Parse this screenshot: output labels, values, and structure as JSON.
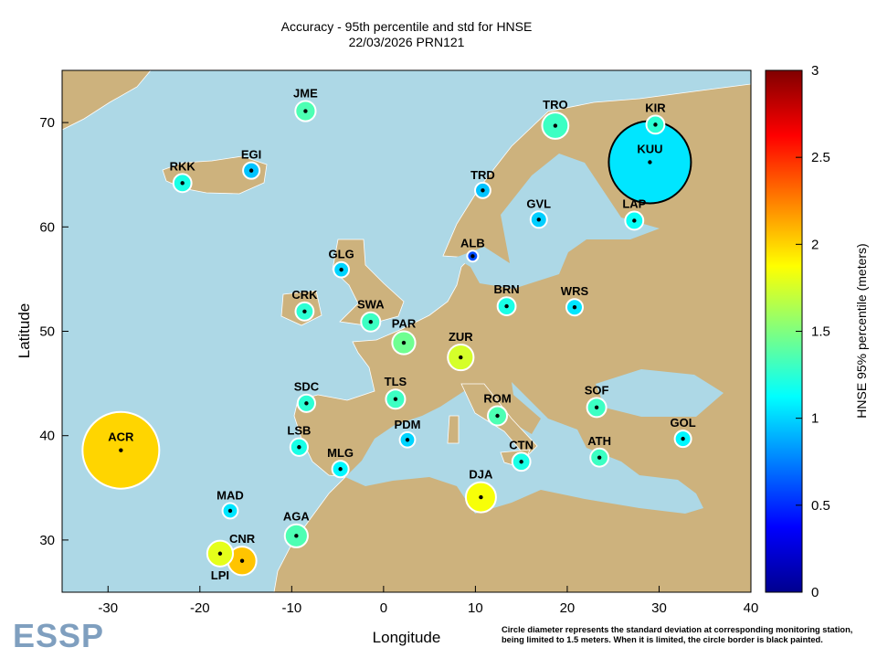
{
  "chart_data": {
    "type": "scatter",
    "title": "Accuracy - 95th percentile and std for HNSE",
    "subtitle": "22/03/2026 PRN121",
    "xlabel": "Longitude",
    "ylabel": "Latitude",
    "xlim": [
      -35,
      40
    ],
    "ylim": [
      25,
      75
    ],
    "xticks": [
      -30,
      -20,
      -10,
      0,
      10,
      20,
      30,
      40
    ],
    "yticks": [
      30,
      40,
      50,
      60,
      70
    ],
    "colorbar": {
      "label": "HNSE 95% percentile (meters)",
      "range": [
        0,
        3
      ],
      "ticks": [
        "0",
        "0.5",
        "1",
        "1.5",
        "2",
        "2.5",
        "3"
      ],
      "colormap": "jet"
    },
    "size_encoding": "circle diameter = std (meters), limited to 1.5",
    "colors": {
      "land": "#cdb27d",
      "sea": "#add8e6",
      "limited_border": "#000000",
      "normal_border": "#ffffff"
    },
    "stations": [
      {
        "name": "JME",
        "lon": -8.5,
        "lat": 71.1,
        "hnse95": 1.35,
        "std": 0.37,
        "limited": false
      },
      {
        "name": "TRO",
        "lon": 18.7,
        "lat": 69.7,
        "hnse95": 1.3,
        "std": 0.48,
        "limited": false
      },
      {
        "name": "KIR",
        "lon": 29.6,
        "lat": 69.8,
        "hnse95": 1.25,
        "std": 0.33,
        "limited": false
      },
      {
        "name": "KUU",
        "lon": 29.0,
        "lat": 66.2,
        "hnse95": 1.05,
        "std": 1.5,
        "limited": true
      },
      {
        "name": "RKK",
        "lon": -21.9,
        "lat": 64.2,
        "hnse95": 1.2,
        "std": 0.33,
        "limited": false
      },
      {
        "name": "EGI",
        "lon": -14.4,
        "lat": 65.4,
        "hnse95": 0.95,
        "std": 0.3,
        "limited": false
      },
      {
        "name": "TRD",
        "lon": 10.8,
        "lat": 63.5,
        "hnse95": 0.95,
        "std": 0.28,
        "limited": false
      },
      {
        "name": "GVL",
        "lon": 16.9,
        "lat": 60.7,
        "hnse95": 0.98,
        "std": 0.3,
        "limited": false
      },
      {
        "name": "LAP",
        "lon": 27.3,
        "lat": 60.6,
        "hnse95": 1.15,
        "std": 0.33,
        "limited": false
      },
      {
        "name": "ALB",
        "lon": 9.7,
        "lat": 57.2,
        "hnse95": 0.6,
        "std": 0.2,
        "limited": false
      },
      {
        "name": "GLG",
        "lon": -4.6,
        "lat": 55.9,
        "hnse95": 1.0,
        "std": 0.28,
        "limited": false
      },
      {
        "name": "CRK",
        "lon": -8.6,
        "lat": 51.9,
        "hnse95": 1.25,
        "std": 0.33,
        "limited": false
      },
      {
        "name": "SWA",
        "lon": -1.4,
        "lat": 50.9,
        "hnse95": 1.3,
        "std": 0.35,
        "limited": false
      },
      {
        "name": "BRN",
        "lon": 13.4,
        "lat": 52.4,
        "hnse95": 1.2,
        "std": 0.33,
        "limited": false
      },
      {
        "name": "WRS",
        "lon": 20.8,
        "lat": 52.3,
        "hnse95": 1.05,
        "std": 0.3,
        "limited": false
      },
      {
        "name": "PAR",
        "lon": 2.2,
        "lat": 48.9,
        "hnse95": 1.45,
        "std": 0.42,
        "limited": false
      },
      {
        "name": "ZUR",
        "lon": 8.4,
        "lat": 47.5,
        "hnse95": 1.75,
        "std": 0.47,
        "limited": false
      },
      {
        "name": "TLS",
        "lon": 1.3,
        "lat": 43.5,
        "hnse95": 1.3,
        "std": 0.35,
        "limited": false
      },
      {
        "name": "SDC",
        "lon": -8.4,
        "lat": 43.1,
        "hnse95": 1.25,
        "std": 0.32,
        "limited": false
      },
      {
        "name": "ROM",
        "lon": 12.4,
        "lat": 41.9,
        "hnse95": 1.35,
        "std": 0.35,
        "limited": false
      },
      {
        "name": "SOF",
        "lon": 23.2,
        "lat": 42.7,
        "hnse95": 1.3,
        "std": 0.35,
        "limited": false
      },
      {
        "name": "GOL",
        "lon": 32.6,
        "lat": 39.7,
        "hnse95": 1.1,
        "std": 0.3,
        "limited": false
      },
      {
        "name": "ACR",
        "lon": -28.6,
        "lat": 38.6,
        "hnse95": 2.0,
        "std": 1.4,
        "limited": false
      },
      {
        "name": "LSB",
        "lon": -9.2,
        "lat": 38.9,
        "hnse95": 1.2,
        "std": 0.32,
        "limited": false
      },
      {
        "name": "PDM",
        "lon": 2.6,
        "lat": 39.6,
        "hnse95": 1.0,
        "std": 0.28,
        "limited": false
      },
      {
        "name": "MLG",
        "lon": -4.7,
        "lat": 36.8,
        "hnse95": 1.1,
        "std": 0.3,
        "limited": false
      },
      {
        "name": "CTN",
        "lon": 15.0,
        "lat": 37.5,
        "hnse95": 1.2,
        "std": 0.33,
        "limited": false
      },
      {
        "name": "ATH",
        "lon": 23.5,
        "lat": 37.9,
        "hnse95": 1.3,
        "std": 0.33,
        "limited": false
      },
      {
        "name": "DJA",
        "lon": 10.6,
        "lat": 34.1,
        "hnse95": 1.85,
        "std": 0.55,
        "limited": false
      },
      {
        "name": "MAD",
        "lon": -16.7,
        "lat": 32.8,
        "hnse95": 1.05,
        "std": 0.28,
        "limited": false
      },
      {
        "name": "AGA",
        "lon": -9.5,
        "lat": 30.4,
        "hnse95": 1.35,
        "std": 0.42,
        "limited": false
      },
      {
        "name": "LPI",
        "lon": -17.8,
        "lat": 28.7,
        "hnse95": 1.8,
        "std": 0.47,
        "limited": false
      },
      {
        "name": "CNR",
        "lon": -15.4,
        "lat": 28.0,
        "hnse95": 2.05,
        "std": 0.52,
        "limited": false
      }
    ]
  },
  "footnote": [
    "Circle diameter represents the standard deviation at corresponding monitoring station,",
    "being limited to 1.5 meters. When it is limited, the circle border is black painted."
  ],
  "logo": "ESSP"
}
